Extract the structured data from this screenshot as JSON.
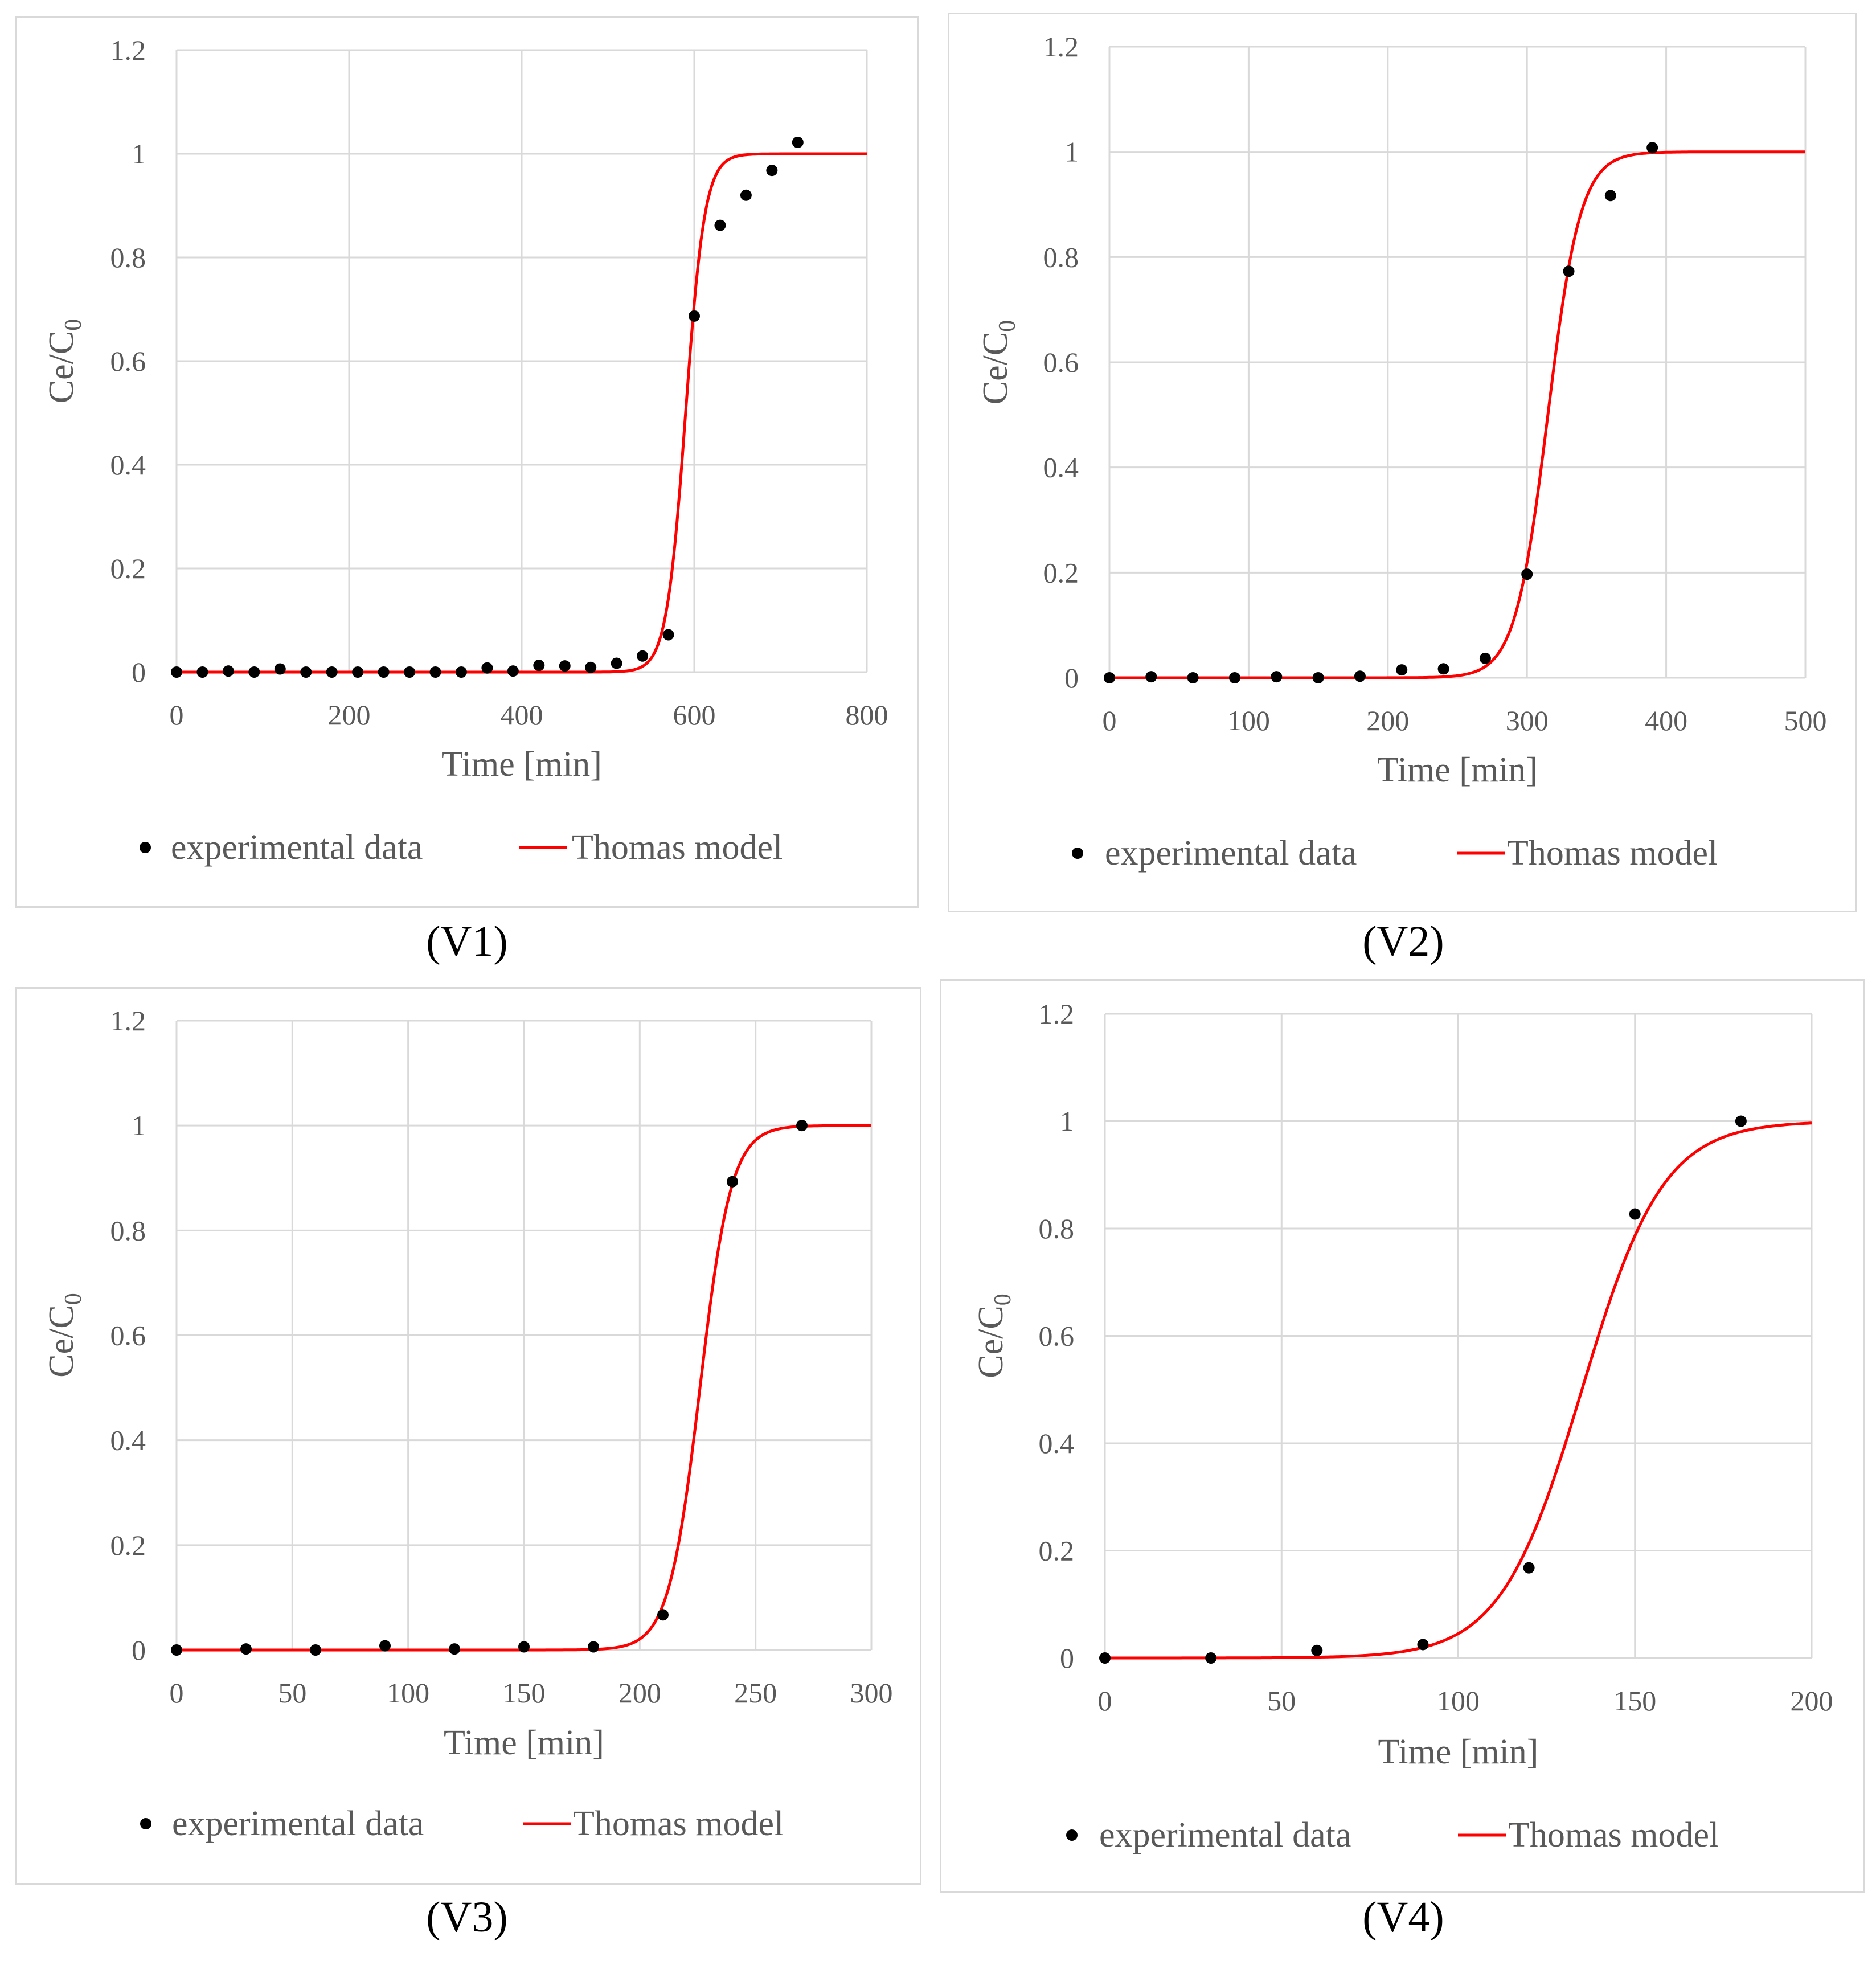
{
  "chart_data": [
    {
      "type": "scatter",
      "caption": "(V1)",
      "xlabel": "Time [min]",
      "ylabel": "Ce/C",
      "ylabel_sub": "0",
      "xlim": [
        0,
        800
      ],
      "ylim": [
        0,
        1.2
      ],
      "xticks": [
        0,
        200,
        400,
        600,
        800
      ],
      "yticks": [
        0,
        0.2,
        0.4,
        0.6,
        0.8,
        1,
        1.2
      ],
      "grid": true,
      "legend": [
        "experimental data",
        "Thomas model"
      ],
      "series": [
        {
          "name": "experimental data",
          "x": [
            0,
            30,
            60,
            90,
            120,
            150,
            180,
            210,
            240,
            270,
            300,
            330,
            360,
            390,
            420,
            450,
            480,
            510,
            540,
            570,
            600,
            630,
            660,
            690,
            720
          ],
          "y": [
            0,
            0,
            0.002,
            0,
            0.006,
            0,
            0,
            0,
            0,
            0,
            0,
            0,
            0.008,
            0.002,
            0.013,
            0.012,
            0.009,
            0.017,
            0.031,
            0.072,
            0.687,
            0.862,
            0.92,
            0.968,
            1.022
          ]
        },
        {
          "name": "Thomas model",
          "midpoint": 590,
          "k": 0.09
        }
      ]
    },
    {
      "type": "scatter",
      "caption": "(V2)",
      "xlabel": "Time [min]",
      "ylabel": "Ce/C",
      "ylabel_sub": "0",
      "xlim": [
        0,
        500
      ],
      "ylim": [
        0,
        1.2
      ],
      "xticks": [
        0,
        100,
        200,
        300,
        400,
        500
      ],
      "yticks": [
        0,
        0.2,
        0.4,
        0.6,
        0.8,
        1,
        1.2
      ],
      "grid": true,
      "legend": [
        "experimental data",
        "Thomas model"
      ],
      "series": [
        {
          "name": "experimental data",
          "x": [
            0,
            30,
            60,
            90,
            120,
            150,
            180,
            210,
            240,
            270,
            300,
            330,
            360,
            390
          ],
          "y": [
            0,
            0.002,
            0,
            0,
            0.002,
            0,
            0.003,
            0.015,
            0.017,
            0.037,
            0.197,
            0.773,
            0.917,
            1.008
          ]
        },
        {
          "name": "Thomas model",
          "midpoint": 315,
          "k": 0.085
        }
      ]
    },
    {
      "type": "scatter",
      "caption": "(V3)",
      "xlabel": "Time [min]",
      "ylabel": "Ce/C",
      "ylabel_sub": "0",
      "xlim": [
        0,
        300
      ],
      "ylim": [
        0,
        1.2
      ],
      "xticks": [
        0,
        50,
        100,
        150,
        200,
        250,
        300
      ],
      "yticks": [
        0,
        0.2,
        0.4,
        0.6,
        0.8,
        1,
        1.2
      ],
      "grid": true,
      "legend": [
        "experimental data",
        "Thomas model"
      ],
      "series": [
        {
          "name": "experimental data",
          "x": [
            0,
            30,
            60,
            90,
            120,
            150,
            180,
            210,
            240,
            270
          ],
          "y": [
            0,
            0.002,
            0,
            0.008,
            0.002,
            0.006,
            0.006,
            0.067,
            0.893,
            1.0
          ]
        },
        {
          "name": "Thomas model",
          "midpoint": 226,
          "k": 0.148
        }
      ]
    },
    {
      "type": "scatter",
      "caption": "(V4)",
      "xlabel": "Time [min]",
      "ylabel": "Ce/C",
      "ylabel_sub": "0",
      "xlim": [
        0,
        200
      ],
      "ylim": [
        0,
        1.2
      ],
      "xticks": [
        0,
        50,
        100,
        150,
        200
      ],
      "yticks": [
        0,
        0.2,
        0.4,
        0.6,
        0.8,
        1,
        1.2
      ],
      "grid": true,
      "legend": [
        "experimental data",
        "Thomas model"
      ],
      "series": [
        {
          "name": "experimental data",
          "x": [
            0,
            30,
            60,
            90,
            120,
            150,
            180
          ],
          "y": [
            0,
            0,
            0.014,
            0.025,
            0.168,
            0.827,
            1.0
          ]
        },
        {
          "name": "Thomas model",
          "midpoint": 135,
          "k": 0.087
        }
      ]
    }
  ],
  "colors": {
    "model": "#ff0000",
    "points": "#000000",
    "grid": "#d9d9d9",
    "frame": "#d9d9d9",
    "text": "#595959"
  }
}
